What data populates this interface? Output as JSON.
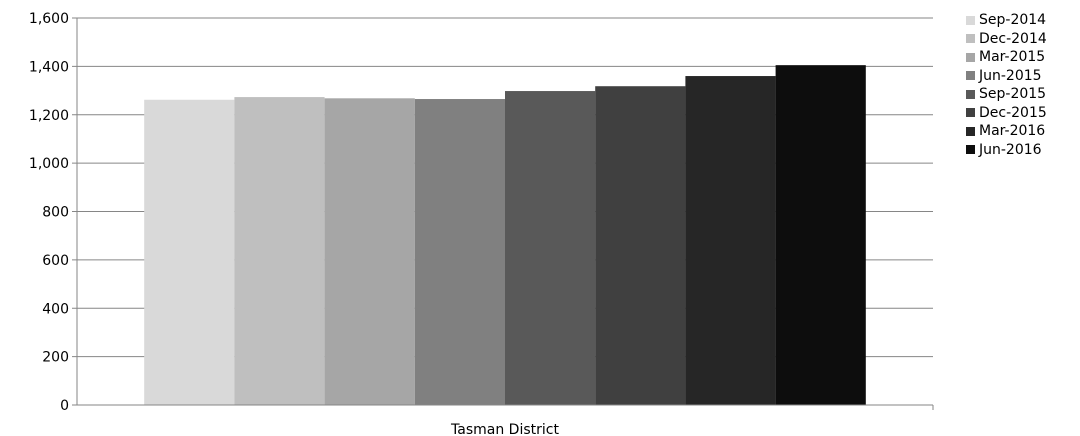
{
  "chart_data": {
    "type": "bar",
    "categories": [
      "Tasman District"
    ],
    "series": [
      {
        "name": "Sep-2014",
        "values": [
          1262
        ],
        "color": "#d9d9d9"
      },
      {
        "name": "Dec-2014",
        "values": [
          1273
        ],
        "color": "#bfbfbf"
      },
      {
        "name": "Mar-2015",
        "values": [
          1268
        ],
        "color": "#a6a6a6"
      },
      {
        "name": "Jun-2015",
        "values": [
          1265
        ],
        "color": "#808080"
      },
      {
        "name": "Sep-2015",
        "values": [
          1298
        ],
        "color": "#595959"
      },
      {
        "name": "Dec-2015",
        "values": [
          1318
        ],
        "color": "#404040"
      },
      {
        "name": "Mar-2016",
        "values": [
          1360
        ],
        "color": "#262626"
      },
      {
        "name": "Jun-2016",
        "values": [
          1405
        ],
        "color": "#0d0d0d"
      }
    ],
    "y_ticks": [
      "0",
      "200",
      "400",
      "600",
      "800",
      "1,000",
      "1,200",
      "1,400",
      "1,600"
    ],
    "ylim": [
      0,
      1600
    ],
    "title": "",
    "xlabel": "",
    "ylabel": "",
    "grid": true,
    "legend_position": "right"
  }
}
